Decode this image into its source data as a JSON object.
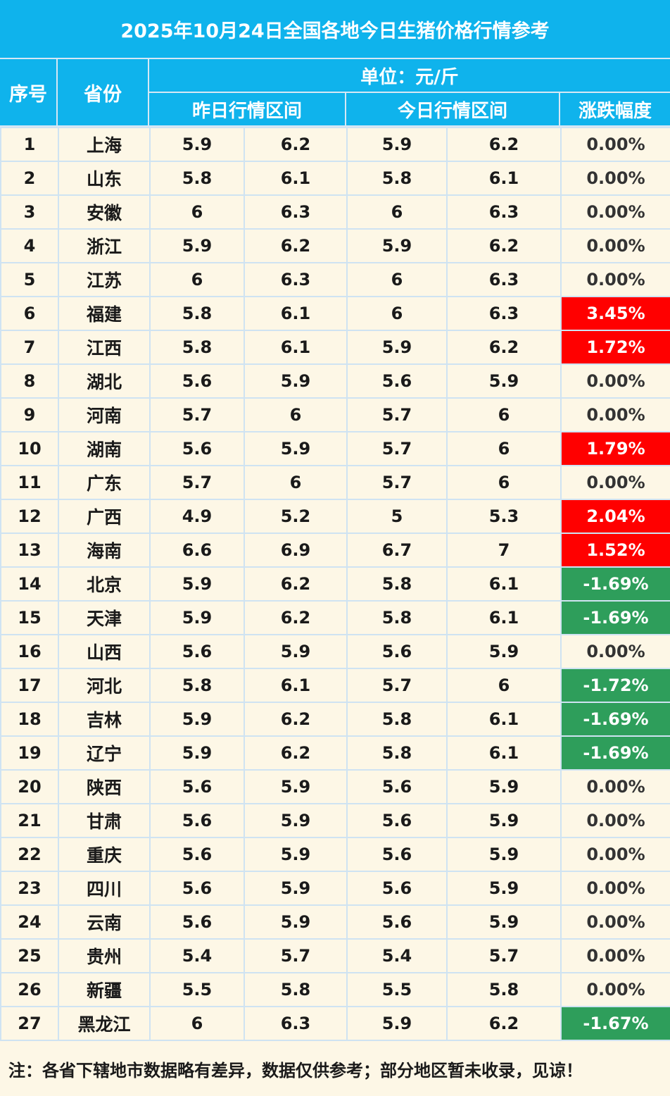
{
  "title": "2025年10月24日全国各地今日生猪价格行情参考",
  "headers": {
    "index": "序号",
    "province": "省份",
    "unit": "单位：元/斤",
    "yesterday": "昨日行情区间",
    "today": "今日行情区间",
    "change": "涨跌幅度"
  },
  "colors": {
    "header_bg": "#0fb3ec",
    "body_bg": "#fdf7e6",
    "up": "#ff0000",
    "down": "#2e9e5b"
  },
  "rows": [
    {
      "no": "1",
      "province": "上海",
      "y_low": "5.9",
      "y_high": "6.2",
      "t_low": "5.9",
      "t_high": "6.2",
      "change": "0.00%",
      "trend": "flat"
    },
    {
      "no": "2",
      "province": "山东",
      "y_low": "5.8",
      "y_high": "6.1",
      "t_low": "5.8",
      "t_high": "6.1",
      "change": "0.00%",
      "trend": "flat"
    },
    {
      "no": "3",
      "province": "安徽",
      "y_low": "6",
      "y_high": "6.3",
      "t_low": "6",
      "t_high": "6.3",
      "change": "0.00%",
      "trend": "flat"
    },
    {
      "no": "4",
      "province": "浙江",
      "y_low": "5.9",
      "y_high": "6.2",
      "t_low": "5.9",
      "t_high": "6.2",
      "change": "0.00%",
      "trend": "flat"
    },
    {
      "no": "5",
      "province": "江苏",
      "y_low": "6",
      "y_high": "6.3",
      "t_low": "6",
      "t_high": "6.3",
      "change": "0.00%",
      "trend": "flat"
    },
    {
      "no": "6",
      "province": "福建",
      "y_low": "5.8",
      "y_high": "6.1",
      "t_low": "6",
      "t_high": "6.3",
      "change": "3.45%",
      "trend": "up"
    },
    {
      "no": "7",
      "province": "江西",
      "y_low": "5.8",
      "y_high": "6.1",
      "t_low": "5.9",
      "t_high": "6.2",
      "change": "1.72%",
      "trend": "up"
    },
    {
      "no": "8",
      "province": "湖北",
      "y_low": "5.6",
      "y_high": "5.9",
      "t_low": "5.6",
      "t_high": "5.9",
      "change": "0.00%",
      "trend": "flat"
    },
    {
      "no": "9",
      "province": "河南",
      "y_low": "5.7",
      "y_high": "6",
      "t_low": "5.7",
      "t_high": "6",
      "change": "0.00%",
      "trend": "flat"
    },
    {
      "no": "10",
      "province": "湖南",
      "y_low": "5.6",
      "y_high": "5.9",
      "t_low": "5.7",
      "t_high": "6",
      "change": "1.79%",
      "trend": "up"
    },
    {
      "no": "11",
      "province": "广东",
      "y_low": "5.7",
      "y_high": "6",
      "t_low": "5.7",
      "t_high": "6",
      "change": "0.00%",
      "trend": "flat"
    },
    {
      "no": "12",
      "province": "广西",
      "y_low": "4.9",
      "y_high": "5.2",
      "t_low": "5",
      "t_high": "5.3",
      "change": "2.04%",
      "trend": "up"
    },
    {
      "no": "13",
      "province": "海南",
      "y_low": "6.6",
      "y_high": "6.9",
      "t_low": "6.7",
      "t_high": "7",
      "change": "1.52%",
      "trend": "up"
    },
    {
      "no": "14",
      "province": "北京",
      "y_low": "5.9",
      "y_high": "6.2",
      "t_low": "5.8",
      "t_high": "6.1",
      "change": "-1.69%",
      "trend": "down"
    },
    {
      "no": "15",
      "province": "天津",
      "y_low": "5.9",
      "y_high": "6.2",
      "t_low": "5.8",
      "t_high": "6.1",
      "change": "-1.69%",
      "trend": "down"
    },
    {
      "no": "16",
      "province": "山西",
      "y_low": "5.6",
      "y_high": "5.9",
      "t_low": "5.6",
      "t_high": "5.9",
      "change": "0.00%",
      "trend": "flat"
    },
    {
      "no": "17",
      "province": "河北",
      "y_low": "5.8",
      "y_high": "6.1",
      "t_low": "5.7",
      "t_high": "6",
      "change": "-1.72%",
      "trend": "down"
    },
    {
      "no": "18",
      "province": "吉林",
      "y_low": "5.9",
      "y_high": "6.2",
      "t_low": "5.8",
      "t_high": "6.1",
      "change": "-1.69%",
      "trend": "down"
    },
    {
      "no": "19",
      "province": "辽宁",
      "y_low": "5.9",
      "y_high": "6.2",
      "t_low": "5.8",
      "t_high": "6.1",
      "change": "-1.69%",
      "trend": "down"
    },
    {
      "no": "20",
      "province": "陕西",
      "y_low": "5.6",
      "y_high": "5.9",
      "t_low": "5.6",
      "t_high": "5.9",
      "change": "0.00%",
      "trend": "flat"
    },
    {
      "no": "21",
      "province": "甘肃",
      "y_low": "5.6",
      "y_high": "5.9",
      "t_low": "5.6",
      "t_high": "5.9",
      "change": "0.00%",
      "trend": "flat"
    },
    {
      "no": "22",
      "province": "重庆",
      "y_low": "5.6",
      "y_high": "5.9",
      "t_low": "5.6",
      "t_high": "5.9",
      "change": "0.00%",
      "trend": "flat"
    },
    {
      "no": "23",
      "province": "四川",
      "y_low": "5.6",
      "y_high": "5.9",
      "t_low": "5.6",
      "t_high": "5.9",
      "change": "0.00%",
      "trend": "flat"
    },
    {
      "no": "24",
      "province": "云南",
      "y_low": "5.6",
      "y_high": "5.9",
      "t_low": "5.6",
      "t_high": "5.9",
      "change": "0.00%",
      "trend": "flat"
    },
    {
      "no": "25",
      "province": "贵州",
      "y_low": "5.4",
      "y_high": "5.7",
      "t_low": "5.4",
      "t_high": "5.7",
      "change": "0.00%",
      "trend": "flat"
    },
    {
      "no": "26",
      "province": "新疆",
      "y_low": "5.5",
      "y_high": "5.8",
      "t_low": "5.5",
      "t_high": "5.8",
      "change": "0.00%",
      "trend": "flat"
    },
    {
      "no": "27",
      "province": "黑龙江",
      "y_low": "6",
      "y_high": "6.3",
      "t_low": "5.9",
      "t_high": "6.2",
      "change": "-1.67%",
      "trend": "down"
    }
  ],
  "note": "注：各省下辖地市数据略有差异，数据仅供参考；部分地区暂未收录，见谅！"
}
